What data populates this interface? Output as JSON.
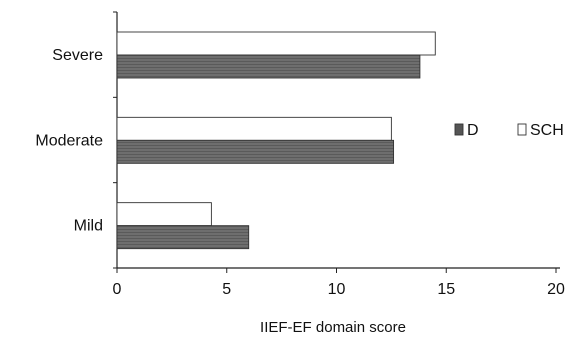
{
  "chart_data": {
    "type": "bar",
    "orientation": "horizontal",
    "categories": [
      "Severe",
      "Moderate",
      "Mild"
    ],
    "series": [
      {
        "name": "SCH",
        "values": [
          14.5,
          12.5,
          4.3
        ],
        "color": "#ffffff"
      },
      {
        "name": "D",
        "values": [
          13.8,
          12.6,
          6.0
        ],
        "color": "#6b6b6b"
      }
    ],
    "xlabel": "IIEF-EF domain score",
    "ylabel": "",
    "xlim": [
      0,
      20
    ],
    "xticks": [
      "0",
      "5",
      "10",
      "15",
      "20"
    ],
    "grid": false,
    "legend": {
      "position": "right",
      "order": [
        "D",
        "SCH"
      ]
    }
  }
}
